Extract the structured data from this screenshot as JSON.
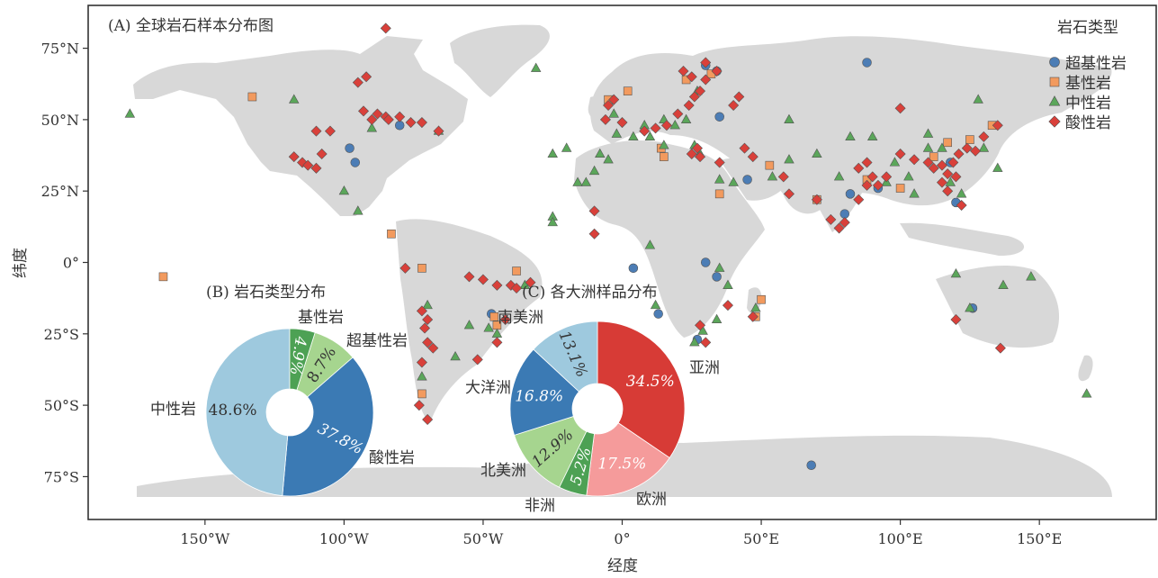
{
  "chart_data": [
    {
      "type": "scatter",
      "title": "(A) 全球岩石样本分布图",
      "xlabel": "经度",
      "ylabel": "纬度",
      "xlim": [
        -192,
        192
      ],
      "ylim": [
        -90,
        90
      ],
      "x_ticks": [
        {
          "value": -150,
          "label": "150°W"
        },
        {
          "value": -100,
          "label": "100°W"
        },
        {
          "value": -50,
          "label": "50°W"
        },
        {
          "value": 0,
          "label": "0°"
        },
        {
          "value": 50,
          "label": "50°E"
        },
        {
          "value": 100,
          "label": "100°E"
        },
        {
          "value": 150,
          "label": "150°E"
        }
      ],
      "y_ticks": [
        {
          "value": 75,
          "label": "75°N"
        },
        {
          "value": 50,
          "label": "50°N"
        },
        {
          "value": 25,
          "label": "25°N"
        },
        {
          "value": 0,
          "label": "0°"
        },
        {
          "value": -25,
          "label": "25°S"
        },
        {
          "value": -50,
          "label": "50°S"
        },
        {
          "value": -75,
          "label": "75°S"
        }
      ],
      "grid": false,
      "legend": {
        "title": "岩石类型",
        "placement": "top-right"
      },
      "series": [
        {
          "name": "超基性岩",
          "marker": "circle",
          "color": "#4C7DB5",
          "points": [
            [
              30,
              69
            ],
            [
              34,
              67
            ],
            [
              88,
              70
            ],
            [
              -98,
              40
            ],
            [
              -96,
              35
            ],
            [
              -80,
              48
            ],
            [
              -47,
              -18
            ],
            [
              30,
              0
            ],
            [
              34,
              -5
            ],
            [
              45,
              29
            ],
            [
              35,
              51
            ],
            [
              80,
              17
            ],
            [
              82,
              24
            ],
            [
              92,
              26
            ],
            [
              118,
              35
            ],
            [
              120,
              21
            ],
            [
              126,
              -16
            ],
            [
              68,
              -71
            ],
            [
              27,
              -27
            ],
            [
              4,
              -2
            ],
            [
              13,
              -18
            ]
          ]
        },
        {
          "name": "基性岩",
          "marker": "square",
          "color": "#F29A5E",
          "points": [
            [
              -133,
              58
            ],
            [
              -165,
              -5
            ],
            [
              -83,
              10
            ],
            [
              -72,
              -2
            ],
            [
              -45,
              -22
            ],
            [
              -72,
              -46
            ],
            [
              -38,
              -3
            ],
            [
              -46,
              -19
            ],
            [
              2,
              60
            ],
            [
              15,
              37
            ],
            [
              14,
              40
            ],
            [
              23,
              64
            ],
            [
              32,
              66
            ],
            [
              53,
              34
            ],
            [
              70,
              22
            ],
            [
              100,
              26
            ],
            [
              112,
              37
            ],
            [
              117,
              42
            ],
            [
              125,
              43
            ],
            [
              133,
              48
            ],
            [
              88,
              29
            ],
            [
              50,
              -13
            ],
            [
              48,
              -19
            ],
            [
              35,
              24
            ],
            [
              -5,
              57
            ]
          ]
        },
        {
          "name": "中性岩",
          "marker": "triangle",
          "color": "#5BA65A",
          "points": [
            [
              -177,
              52
            ],
            [
              -118,
              57
            ],
            [
              -100,
              25
            ],
            [
              -95,
              18
            ],
            [
              -90,
              47
            ],
            [
              -66,
              46
            ],
            [
              -31,
              68
            ],
            [
              -16,
              28
            ],
            [
              -13,
              28
            ],
            [
              -25,
              38
            ],
            [
              -20,
              40
            ],
            [
              -25,
              16
            ],
            [
              -25,
              14
            ],
            [
              -70,
              -15
            ],
            [
              -72,
              -40
            ],
            [
              -55,
              -22
            ],
            [
              -60,
              -33
            ],
            [
              -48,
              -23
            ],
            [
              -45,
              -25
            ],
            [
              -35,
              -8
            ],
            [
              -5,
              36
            ],
            [
              10,
              44
            ],
            [
              15,
              41
            ],
            [
              26,
              41
            ],
            [
              28,
              38
            ],
            [
              35,
              29
            ],
            [
              40,
              28
            ],
            [
              35,
              -2
            ],
            [
              38,
              -8
            ],
            [
              10,
              6
            ],
            [
              -10,
              32
            ],
            [
              -2,
              45
            ],
            [
              4,
              44
            ],
            [
              8,
              48
            ],
            [
              15,
              50
            ],
            [
              19,
              48
            ],
            [
              23,
              50
            ],
            [
              27,
              60
            ],
            [
              60,
              50
            ],
            [
              70,
              38
            ],
            [
              78,
              30
            ],
            [
              82,
              44
            ],
            [
              90,
              44
            ],
            [
              95,
              28
            ],
            [
              98,
              35
            ],
            [
              103,
              30
            ],
            [
              105,
              24
            ],
            [
              110,
              40
            ],
            [
              115,
              40
            ],
            [
              118,
              28
            ],
            [
              122,
              24
            ],
            [
              128,
              57
            ],
            [
              125,
              -16
            ],
            [
              120,
              -4
            ],
            [
              137,
              -8
            ],
            [
              147,
              -5
            ],
            [
              167,
              -46
            ],
            [
              48,
              -16
            ],
            [
              54,
              30
            ],
            [
              60,
              36
            ],
            [
              34,
              -20
            ],
            [
              29,
              -24
            ],
            [
              26,
              -28
            ],
            [
              12,
              -15
            ],
            [
              -8,
              38
            ],
            [
              -3,
              52
            ],
            [
              130,
              40
            ],
            [
              135,
              33
            ],
            [
              110,
              45
            ]
          ]
        },
        {
          "name": "酸性岩",
          "marker": "diamond",
          "color": "#D9403A",
          "points": [
            [
              -85,
              82
            ],
            [
              -95,
              63
            ],
            [
              -92,
              65
            ],
            [
              -93,
              53
            ],
            [
              -88,
              52
            ],
            [
              -85,
              51
            ],
            [
              -90,
              50
            ],
            [
              -84,
              50
            ],
            [
              -80,
              51
            ],
            [
              -76,
              49
            ],
            [
              -72,
              49
            ],
            [
              -66,
              46
            ],
            [
              -110,
              46
            ],
            [
              -105,
              46
            ],
            [
              -118,
              37
            ],
            [
              -115,
              35
            ],
            [
              -113,
              34
            ],
            [
              -110,
              33
            ],
            [
              -108,
              38
            ],
            [
              -78,
              -2
            ],
            [
              -72,
              -17
            ],
            [
              -70,
              -20
            ],
            [
              -71,
              -23
            ],
            [
              -70,
              -28
            ],
            [
              -68,
              -30
            ],
            [
              -72,
              -35
            ],
            [
              -73,
              -50
            ],
            [
              -70,
              -55
            ],
            [
              -55,
              -5
            ],
            [
              -50,
              -6
            ],
            [
              -45,
              -8
            ],
            [
              -40,
              -8
            ],
            [
              -38,
              -9
            ],
            [
              -42,
              -20
            ],
            [
              -45,
              -28
            ],
            [
              -52,
              -34
            ],
            [
              -33,
              -7
            ],
            [
              -3,
              57
            ],
            [
              -5,
              55
            ],
            [
              0,
              49
            ],
            [
              -6,
              50
            ],
            [
              8,
              46
            ],
            [
              12,
              47
            ],
            [
              16,
              48
            ],
            [
              20,
              52
            ],
            [
              24,
              55
            ],
            [
              26,
              58
            ],
            [
              28,
              60
            ],
            [
              30,
              64
            ],
            [
              25,
              65
            ],
            [
              22,
              67
            ],
            [
              30,
              70
            ],
            [
              34,
              67
            ],
            [
              25,
              38
            ],
            [
              27,
              40
            ],
            [
              28,
              37
            ],
            [
              44,
              40
            ],
            [
              47,
              37
            ],
            [
              58,
              30
            ],
            [
              60,
              24
            ],
            [
              70,
              22
            ],
            [
              75,
              15
            ],
            [
              78,
              12
            ],
            [
              80,
              14
            ],
            [
              85,
              22
            ],
            [
              88,
              27
            ],
            [
              90,
              30
            ],
            [
              92,
              27
            ],
            [
              110,
              35
            ],
            [
              112,
              33
            ],
            [
              115,
              34
            ],
            [
              117,
              31
            ],
            [
              119,
              35
            ],
            [
              121,
              38
            ],
            [
              124,
              40
            ],
            [
              127,
              39
            ],
            [
              130,
              44
            ],
            [
              135,
              48
            ],
            [
              117,
              25
            ],
            [
              115,
              28
            ],
            [
              120,
              30
            ],
            [
              122,
              20
            ],
            [
              120,
              -20
            ],
            [
              136,
              -30
            ],
            [
              28,
              -22
            ],
            [
              30,
              -28
            ],
            [
              38,
              -15
            ],
            [
              -10,
              18
            ],
            [
              -10,
              10
            ],
            [
              47,
              -19
            ],
            [
              35,
              35
            ],
            [
              100,
              38
            ],
            [
              105,
              36
            ],
            [
              85,
              33
            ],
            [
              88,
              35
            ],
            [
              100,
              54
            ],
            [
              95,
              30
            ],
            [
              40,
              55
            ],
            [
              42,
              58
            ]
          ]
        }
      ]
    },
    {
      "type": "pie",
      "title": "(B) 岩石类型分布",
      "labels": [
        "超基性岩",
        "基性岩",
        "中性岩",
        "酸性岩"
      ],
      "values": [
        8.7,
        4.9,
        48.6,
        37.8
      ],
      "value_labels": [
        "8.7%",
        "4.9%",
        "48.6%",
        "37.8%"
      ],
      "colors": [
        "#A6D58F",
        "#4DA154",
        "#9EC9DE",
        "#3B7AB4"
      ]
    },
    {
      "type": "pie",
      "title": "(C) 各大洲样品分布",
      "labels": [
        "亚洲",
        "欧洲",
        "非洲",
        "北美洲",
        "大洋洲",
        "南美洲"
      ],
      "values": [
        34.5,
        17.5,
        5.2,
        12.9,
        16.8,
        13.1
      ],
      "value_labels": [
        "34.5%",
        "17.5%",
        "5.2%",
        "12.9%",
        "16.8%",
        "13.1%"
      ],
      "colors": [
        "#D73B36",
        "#F59B9B",
        "#4DA154",
        "#A6D58F",
        "#3B7AB4",
        "#9EC9DE"
      ]
    }
  ]
}
